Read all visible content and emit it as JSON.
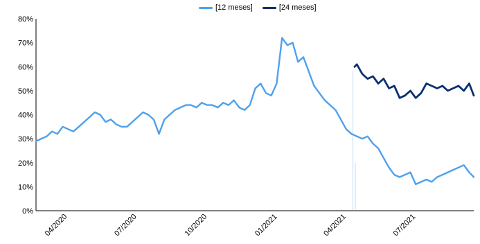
{
  "chart_data": {
    "type": "line",
    "title": "",
    "xlabel": "",
    "ylabel": "",
    "ylim": [
      0,
      80
    ],
    "y_ticks": [
      "0%",
      "10%",
      "20%",
      "30%",
      "40%",
      "50%",
      "60%",
      "70%",
      "80%"
    ],
    "x_tick_labels": [
      "04/2020",
      "07/2020",
      "10/2020",
      "01/2021",
      "04/2021",
      "07/2021"
    ],
    "x_tick_dates": [
      "2020-04-01",
      "2020-07-01",
      "2020-10-01",
      "2021-01-01",
      "2021-04-01",
      "2021-07-01"
    ],
    "x_range": [
      "2020-02-20",
      "2021-09-15"
    ],
    "grid": false,
    "legend_position": "top",
    "series": [
      {
        "name": "[12 meses]",
        "color": "#4ea1ec",
        "x": [
          "2020-02-20",
          "2020-02-27",
          "2020-03-05",
          "2020-03-12",
          "2020-03-19",
          "2020-03-26",
          "2020-04-02",
          "2020-04-09",
          "2020-04-16",
          "2020-04-23",
          "2020-04-30",
          "2020-05-07",
          "2020-05-14",
          "2020-05-21",
          "2020-05-28",
          "2020-06-04",
          "2020-06-11",
          "2020-06-18",
          "2020-06-25",
          "2020-07-02",
          "2020-07-09",
          "2020-07-16",
          "2020-07-23",
          "2020-07-30",
          "2020-08-06",
          "2020-08-13",
          "2020-08-20",
          "2020-08-27",
          "2020-09-03",
          "2020-09-10",
          "2020-09-17",
          "2020-09-24",
          "2020-10-01",
          "2020-10-08",
          "2020-10-15",
          "2020-10-22",
          "2020-10-29",
          "2020-11-05",
          "2020-11-12",
          "2020-11-19",
          "2020-11-26",
          "2020-12-03",
          "2020-12-10",
          "2020-12-17",
          "2020-12-24",
          "2020-12-31",
          "2021-01-07",
          "2021-01-14",
          "2021-01-21",
          "2021-01-28",
          "2021-02-04",
          "2021-02-11",
          "2021-02-18",
          "2021-02-25",
          "2021-03-04",
          "2021-03-11",
          "2021-03-18",
          "2021-03-25",
          "2021-04-01",
          "2021-04-08",
          "2021-04-15",
          "2021-04-22",
          "2021-04-29",
          "2021-05-06",
          "2021-05-13",
          "2021-05-20",
          "2021-05-27",
          "2021-06-03",
          "2021-06-10",
          "2021-06-17",
          "2021-06-24",
          "2021-07-01",
          "2021-07-08",
          "2021-07-15",
          "2021-07-22",
          "2021-07-29",
          "2021-08-05",
          "2021-08-12",
          "2021-08-19",
          "2021-08-26",
          "2021-09-02",
          "2021-09-09",
          "2021-09-15"
        ],
        "values": [
          29,
          30,
          31,
          33,
          32,
          35,
          34,
          33,
          35,
          37,
          39,
          41,
          40,
          37,
          38,
          36,
          35,
          35,
          37,
          39,
          41,
          40,
          38,
          32,
          38,
          40,
          42,
          43,
          44,
          44,
          43,
          45,
          44,
          44,
          43,
          45,
          44,
          46,
          43,
          42,
          44,
          51,
          53,
          49,
          48,
          53,
          72,
          69,
          70,
          62,
          64,
          58,
          52,
          49,
          46,
          44,
          42,
          38,
          34,
          32,
          31,
          30,
          31,
          28,
          26,
          22,
          18,
          15,
          14,
          15,
          16,
          11,
          12,
          13,
          12,
          14,
          15,
          16,
          17,
          18,
          19,
          16,
          14
        ]
      },
      {
        "name": "[24 meses]",
        "color": "#0b2f6e",
        "x": [
          "2021-04-12",
          "2021-04-15",
          "2021-04-22",
          "2021-04-29",
          "2021-05-06",
          "2021-05-13",
          "2021-05-20",
          "2021-05-27",
          "2021-06-03",
          "2021-06-10",
          "2021-06-17",
          "2021-06-24",
          "2021-07-01",
          "2021-07-08",
          "2021-07-15",
          "2021-07-22",
          "2021-07-29",
          "2021-08-05",
          "2021-08-12",
          "2021-08-19",
          "2021-08-26",
          "2021-09-02",
          "2021-09-09",
          "2021-09-15"
        ],
        "values": [
          60,
          61,
          57,
          55,
          56,
          53,
          55,
          51,
          52,
          47,
          48,
          50,
          47,
          49,
          53,
          52,
          51,
          52,
          50,
          51,
          52,
          50,
          53,
          48
        ]
      }
    ]
  }
}
